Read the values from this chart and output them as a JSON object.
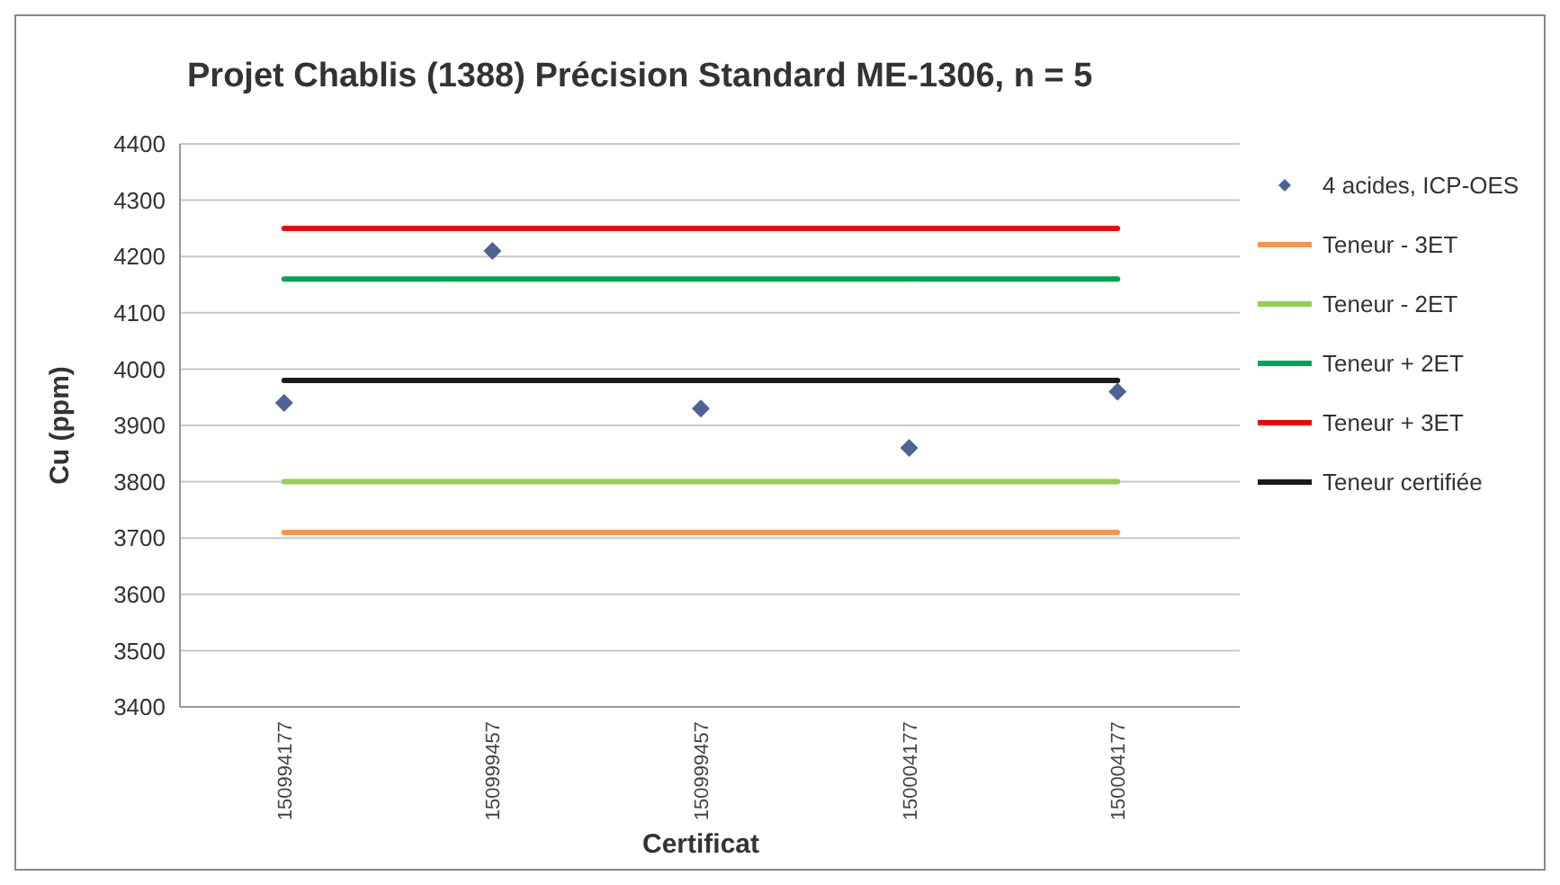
{
  "chart_data": {
    "type": "scatter",
    "title": "Projet Chablis (1388) Précision Standard ME-1306, n = 5",
    "xlabel": "Certificat",
    "ylabel": "Cu (ppm)",
    "categories": [
      "150994177",
      "150999457",
      "150999457",
      "150004177",
      "150004177"
    ],
    "ylim": [
      3400,
      4400
    ],
    "yticks": [
      3400,
      3500,
      3600,
      3700,
      3800,
      3900,
      4000,
      4100,
      4200,
      4300,
      4400
    ],
    "grid": "y",
    "legend": "right",
    "series": [
      {
        "name": "4 acides, ICP-OES",
        "marker": "diamond",
        "color": "#4f6295",
        "values": [
          3940,
          4210,
          3930,
          3860,
          3960
        ]
      },
      {
        "name": "Teneur - 3ET",
        "type": "line",
        "color": "#f79646",
        "values": [
          3710,
          3710,
          3710,
          3710,
          3710
        ]
      },
      {
        "name": "Teneur - 2ET",
        "type": "line",
        "color": "#92d050",
        "values": [
          3800,
          3800,
          3800,
          3800,
          3800
        ]
      },
      {
        "name": "Teneur + 2ET",
        "type": "line",
        "color": "#00a550",
        "values": [
          4160,
          4160,
          4160,
          4160,
          4160
        ]
      },
      {
        "name": "Teneur + 3ET",
        "type": "line",
        "color": "#ff0000",
        "values": [
          4250,
          4250,
          4250,
          4250,
          4250
        ]
      },
      {
        "name": "Teneur certifiée",
        "type": "line",
        "color": "#1a1a1a",
        "values": [
          3980,
          3980,
          3980,
          3980,
          3980
        ]
      }
    ]
  }
}
